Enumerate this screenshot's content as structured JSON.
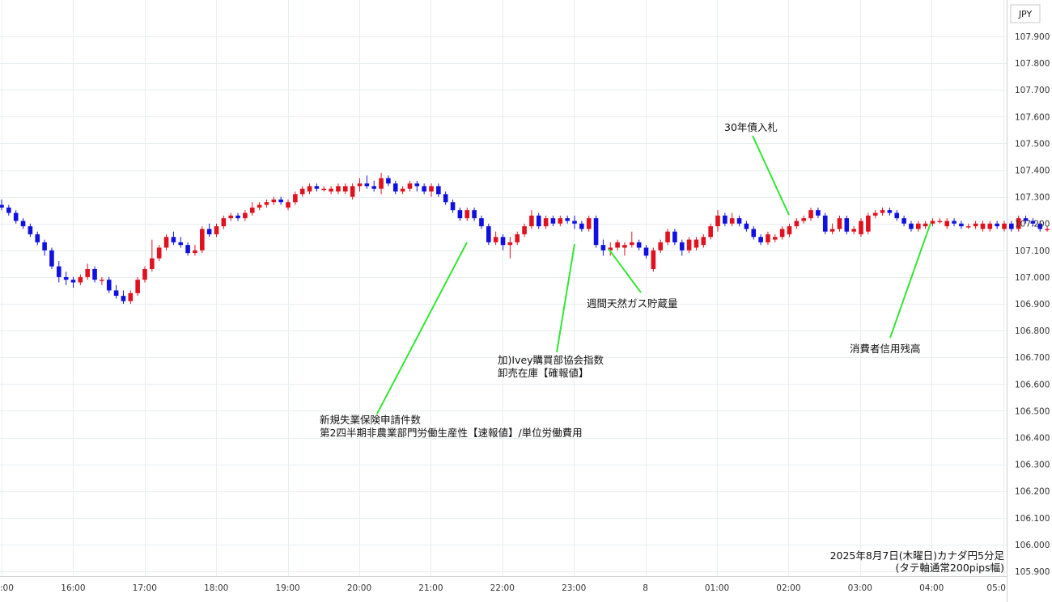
{
  "chart_data": {
    "type": "candlestick",
    "currency_label": "JPY",
    "x_tick_labels": [
      ":00",
      "16:00",
      "17:00",
      "18:00",
      "19:00",
      "20:00",
      "21:00",
      "22:00",
      "23:00",
      "8",
      "01:00",
      "02:00",
      "03:00",
      "04:00",
      "05:0"
    ],
    "y_tick_labels": [
      "107.900",
      "107.800",
      "107.700",
      "107.600",
      "107.500",
      "107.400",
      "107.300",
      "107.200",
      "107.100",
      "107.000",
      "106.900",
      "106.800",
      "106.700",
      "106.600",
      "106.500",
      "106.400",
      "106.300",
      "106.200",
      "106.100",
      "106.000",
      "105.900"
    ],
    "ylim": [
      105.9,
      107.9
    ],
    "grid": true,
    "colors": {
      "up": "#e0121f",
      "down": "#1010e0",
      "annotation_line": "#33e633",
      "grid": "#e8eef1"
    },
    "candles": [
      [
        107.27,
        107.29,
        107.25,
        107.26
      ],
      [
        107.26,
        107.27,
        107.23,
        107.24
      ],
      [
        107.24,
        107.25,
        107.2,
        107.21
      ],
      [
        107.21,
        107.22,
        107.18,
        107.19
      ],
      [
        107.19,
        107.2,
        107.15,
        107.16
      ],
      [
        107.16,
        107.17,
        107.12,
        107.13
      ],
      [
        107.13,
        107.14,
        107.08,
        107.1
      ],
      [
        107.1,
        107.11,
        107.03,
        107.04
      ],
      [
        107.04,
        107.06,
        106.98,
        107.0
      ],
      [
        107.0,
        107.02,
        106.97,
        106.99
      ],
      [
        106.99,
        107.0,
        106.96,
        106.98
      ],
      [
        106.98,
        107.01,
        106.97,
        107.0
      ],
      [
        107.0,
        107.05,
        106.99,
        107.03
      ],
      [
        107.03,
        107.04,
        106.98,
        106.99
      ],
      [
        106.99,
        107.0,
        106.97,
        106.99
      ],
      [
        106.99,
        107.0,
        106.94,
        106.95
      ],
      [
        106.95,
        106.97,
        106.92,
        106.93
      ],
      [
        106.93,
        106.95,
        106.9,
        106.91
      ],
      [
        106.91,
        106.95,
        106.9,
        106.94
      ],
      [
        106.94,
        107.0,
        106.93,
        106.99
      ],
      [
        106.99,
        107.04,
        106.98,
        107.03
      ],
      [
        107.03,
        107.14,
        107.02,
        107.07
      ],
      [
        107.07,
        107.12,
        107.06,
        107.11
      ],
      [
        107.11,
        107.16,
        107.1,
        107.15
      ],
      [
        107.15,
        107.17,
        107.12,
        107.13
      ],
      [
        107.13,
        107.15,
        107.11,
        107.12
      ],
      [
        107.12,
        107.13,
        107.08,
        107.09
      ],
      [
        107.09,
        107.12,
        107.08,
        107.1
      ],
      [
        107.1,
        107.19,
        107.09,
        107.18
      ],
      [
        107.18,
        107.2,
        107.15,
        107.16
      ],
      [
        107.16,
        107.2,
        107.15,
        107.19
      ],
      [
        107.19,
        107.23,
        107.18,
        107.22
      ],
      [
        107.22,
        107.24,
        107.21,
        107.23
      ],
      [
        107.23,
        107.24,
        107.21,
        107.22
      ],
      [
        107.22,
        107.25,
        107.21,
        107.24
      ],
      [
        107.24,
        107.28,
        107.23,
        107.26
      ],
      [
        107.26,
        107.28,
        107.25,
        107.27
      ],
      [
        107.27,
        107.29,
        107.26,
        107.28
      ],
      [
        107.28,
        107.3,
        107.27,
        107.29
      ],
      [
        107.29,
        107.3,
        107.27,
        107.28
      ],
      [
        107.26,
        107.29,
        107.25,
        107.28
      ],
      [
        107.28,
        107.32,
        107.27,
        107.31
      ],
      [
        107.31,
        107.34,
        107.3,
        107.33
      ],
      [
        107.32,
        107.35,
        107.31,
        107.34
      ],
      [
        107.34,
        107.35,
        107.32,
        107.33
      ],
      [
        107.33,
        107.34,
        107.32,
        107.33
      ],
      [
        107.32,
        107.34,
        107.31,
        107.33
      ],
      [
        107.32,
        107.35,
        107.31,
        107.34
      ],
      [
        107.32,
        107.35,
        107.31,
        107.34
      ],
      [
        107.3,
        107.35,
        107.29,
        107.34
      ],
      [
        107.34,
        107.37,
        107.32,
        107.35
      ],
      [
        107.35,
        107.38,
        107.33,
        107.34
      ],
      [
        107.34,
        107.36,
        107.32,
        107.33
      ],
      [
        107.33,
        107.39,
        107.31,
        107.37
      ],
      [
        107.37,
        107.38,
        107.34,
        107.35
      ],
      [
        107.35,
        107.36,
        107.31,
        107.32
      ],
      [
        107.32,
        107.34,
        107.31,
        107.33
      ],
      [
        107.33,
        107.36,
        107.32,
        107.35
      ],
      [
        107.35,
        107.36,
        107.32,
        107.34
      ],
      [
        107.34,
        107.35,
        107.31,
        107.32
      ],
      [
        107.32,
        107.35,
        107.3,
        107.34
      ],
      [
        107.34,
        107.35,
        107.3,
        107.31
      ],
      [
        107.31,
        107.32,
        107.27,
        107.28
      ],
      [
        107.28,
        107.29,
        107.24,
        107.25
      ],
      [
        107.25,
        107.26,
        107.21,
        107.22
      ],
      [
        107.22,
        107.26,
        107.21,
        107.25
      ],
      [
        107.25,
        107.26,
        107.21,
        107.22
      ],
      [
        107.22,
        107.23,
        107.18,
        107.19
      ],
      [
        107.19,
        107.2,
        107.12,
        107.13
      ],
      [
        107.13,
        107.17,
        107.12,
        107.15
      ],
      [
        107.15,
        107.16,
        107.1,
        107.12
      ],
      [
        107.12,
        107.15,
        107.07,
        107.13
      ],
      [
        107.13,
        107.17,
        107.12,
        107.16
      ],
      [
        107.16,
        107.2,
        107.15,
        107.19
      ],
      [
        107.19,
        107.25,
        107.18,
        107.23
      ],
      [
        107.23,
        107.24,
        107.18,
        107.19
      ],
      [
        107.19,
        107.23,
        107.18,
        107.22
      ],
      [
        107.22,
        107.23,
        107.19,
        107.2
      ],
      [
        107.2,
        107.23,
        107.19,
        107.22
      ],
      [
        107.22,
        107.23,
        107.2,
        107.21
      ],
      [
        107.21,
        107.23,
        107.18,
        107.2
      ],
      [
        107.2,
        107.21,
        107.17,
        107.18
      ],
      [
        107.18,
        107.23,
        107.17,
        107.22
      ],
      [
        107.22,
        107.23,
        107.11,
        107.12
      ],
      [
        107.12,
        107.14,
        107.08,
        107.1
      ],
      [
        107.1,
        107.13,
        107.08,
        107.11
      ],
      [
        107.11,
        107.14,
        107.1,
        107.13
      ],
      [
        107.11,
        107.13,
        107.08,
        107.12
      ],
      [
        107.12,
        107.17,
        107.11,
        107.13
      ],
      [
        107.13,
        107.14,
        107.1,
        107.11
      ],
      [
        107.11,
        107.12,
        107.07,
        107.08
      ],
      [
        107.03,
        107.11,
        107.02,
        107.1
      ],
      [
        107.1,
        107.14,
        107.09,
        107.13
      ],
      [
        107.13,
        107.18,
        107.12,
        107.17
      ],
      [
        107.17,
        107.18,
        107.12,
        107.13
      ],
      [
        107.13,
        107.14,
        107.08,
        107.1
      ],
      [
        107.1,
        107.15,
        107.09,
        107.14
      ],
      [
        107.11,
        107.15,
        107.1,
        107.14
      ],
      [
        107.12,
        107.16,
        107.11,
        107.15
      ],
      [
        107.15,
        107.2,
        107.14,
        107.19
      ],
      [
        107.19,
        107.25,
        107.17,
        107.23
      ],
      [
        107.23,
        107.24,
        107.19,
        107.2
      ],
      [
        107.2,
        107.24,
        107.19,
        107.22
      ],
      [
        107.22,
        107.23,
        107.19,
        107.2
      ],
      [
        107.2,
        107.21,
        107.17,
        107.18
      ],
      [
        107.18,
        107.19,
        107.14,
        107.15
      ],
      [
        107.15,
        107.16,
        107.12,
        107.13
      ],
      [
        107.13,
        107.17,
        107.12,
        107.16
      ],
      [
        107.14,
        107.16,
        107.13,
        107.15
      ],
      [
        107.15,
        107.19,
        107.14,
        107.18
      ],
      [
        107.16,
        107.2,
        107.15,
        107.19
      ],
      [
        107.19,
        107.22,
        107.18,
        107.21
      ],
      [
        107.21,
        107.23,
        107.2,
        107.22
      ],
      [
        107.22,
        107.26,
        107.21,
        107.25
      ],
      [
        107.25,
        107.26,
        107.22,
        107.23
      ],
      [
        107.23,
        107.24,
        107.16,
        107.17
      ],
      [
        107.17,
        107.2,
        107.16,
        107.18
      ],
      [
        107.18,
        107.23,
        107.17,
        107.22
      ],
      [
        107.22,
        107.23,
        107.16,
        107.17
      ],
      [
        107.17,
        107.19,
        107.16,
        107.18
      ],
      [
        107.16,
        107.22,
        107.15,
        107.21
      ],
      [
        107.17,
        107.24,
        107.16,
        107.23
      ],
      [
        107.23,
        107.25,
        107.22,
        107.24
      ],
      [
        107.24,
        107.26,
        107.23,
        107.25
      ],
      [
        107.25,
        107.26,
        107.23,
        107.24
      ],
      [
        107.24,
        107.25,
        107.21,
        107.22
      ],
      [
        107.22,
        107.23,
        107.19,
        107.2
      ],
      [
        107.2,
        107.21,
        107.17,
        107.18
      ],
      [
        107.18,
        107.21,
        107.17,
        107.2
      ],
      [
        107.19,
        107.21,
        107.18,
        107.2
      ],
      [
        107.2,
        107.22,
        107.19,
        107.21
      ],
      [
        107.21,
        107.22,
        107.2,
        107.21
      ],
      [
        107.19,
        107.22,
        107.18,
        107.21
      ],
      [
        107.21,
        107.22,
        107.19,
        107.2
      ],
      [
        107.2,
        107.21,
        107.18,
        107.19
      ],
      [
        107.19,
        107.2,
        107.18,
        107.19
      ],
      [
        107.19,
        107.21,
        107.18,
        107.2
      ],
      [
        107.18,
        107.21,
        107.17,
        107.2
      ],
      [
        107.18,
        107.21,
        107.17,
        107.2
      ],
      [
        107.2,
        107.21,
        107.18,
        107.19
      ],
      [
        107.18,
        107.21,
        107.17,
        107.2
      ],
      [
        107.2,
        107.21,
        107.17,
        107.18
      ],
      [
        107.18,
        107.23,
        107.17,
        107.22
      ],
      [
        107.22,
        107.23,
        107.2,
        107.21
      ],
      [
        107.21,
        107.22,
        107.19,
        107.2
      ],
      [
        107.2,
        107.21,
        107.17,
        107.18
      ],
      [
        107.18,
        107.19,
        107.17,
        107.18
      ],
      [
        107.18,
        107.2,
        107.17,
        107.19
      ],
      [
        107.19,
        107.2,
        107.16,
        107.17
      ],
      [
        107.17,
        107.18,
        106.99,
        107.0
      ],
      [
        107.0,
        107.03,
        106.99,
        107.02
      ],
      [
        107.02,
        107.03,
        106.97,
        106.98
      ],
      [
        106.98,
        107.02,
        106.9,
        107.01
      ],
      [
        107.01,
        107.02,
        106.97,
        106.99
      ],
      [
        106.99,
        107.03,
        106.96,
        107.02
      ],
      [
        107.02,
        107.04,
        107.0,
        107.01
      ]
    ],
    "annotations": [
      {
        "text": "30年債入札"
      },
      {
        "text": "週間天然ガス貯蔵量"
      },
      {
        "text": "加)Ivey購買部協会指数"
      },
      {
        "text": "卸売在庫【確報値】"
      },
      {
        "text": "新規失業保険申請件数"
      },
      {
        "text": "第2四半期非農業部門労働生産性【速報値】/単位労働費用"
      },
      {
        "text": "消費者信用残高"
      }
    ],
    "footer": [
      "2025年8月7日(木曜日)カナダ円5分足",
      "(タテ軸通常200pips幅)"
    ]
  }
}
